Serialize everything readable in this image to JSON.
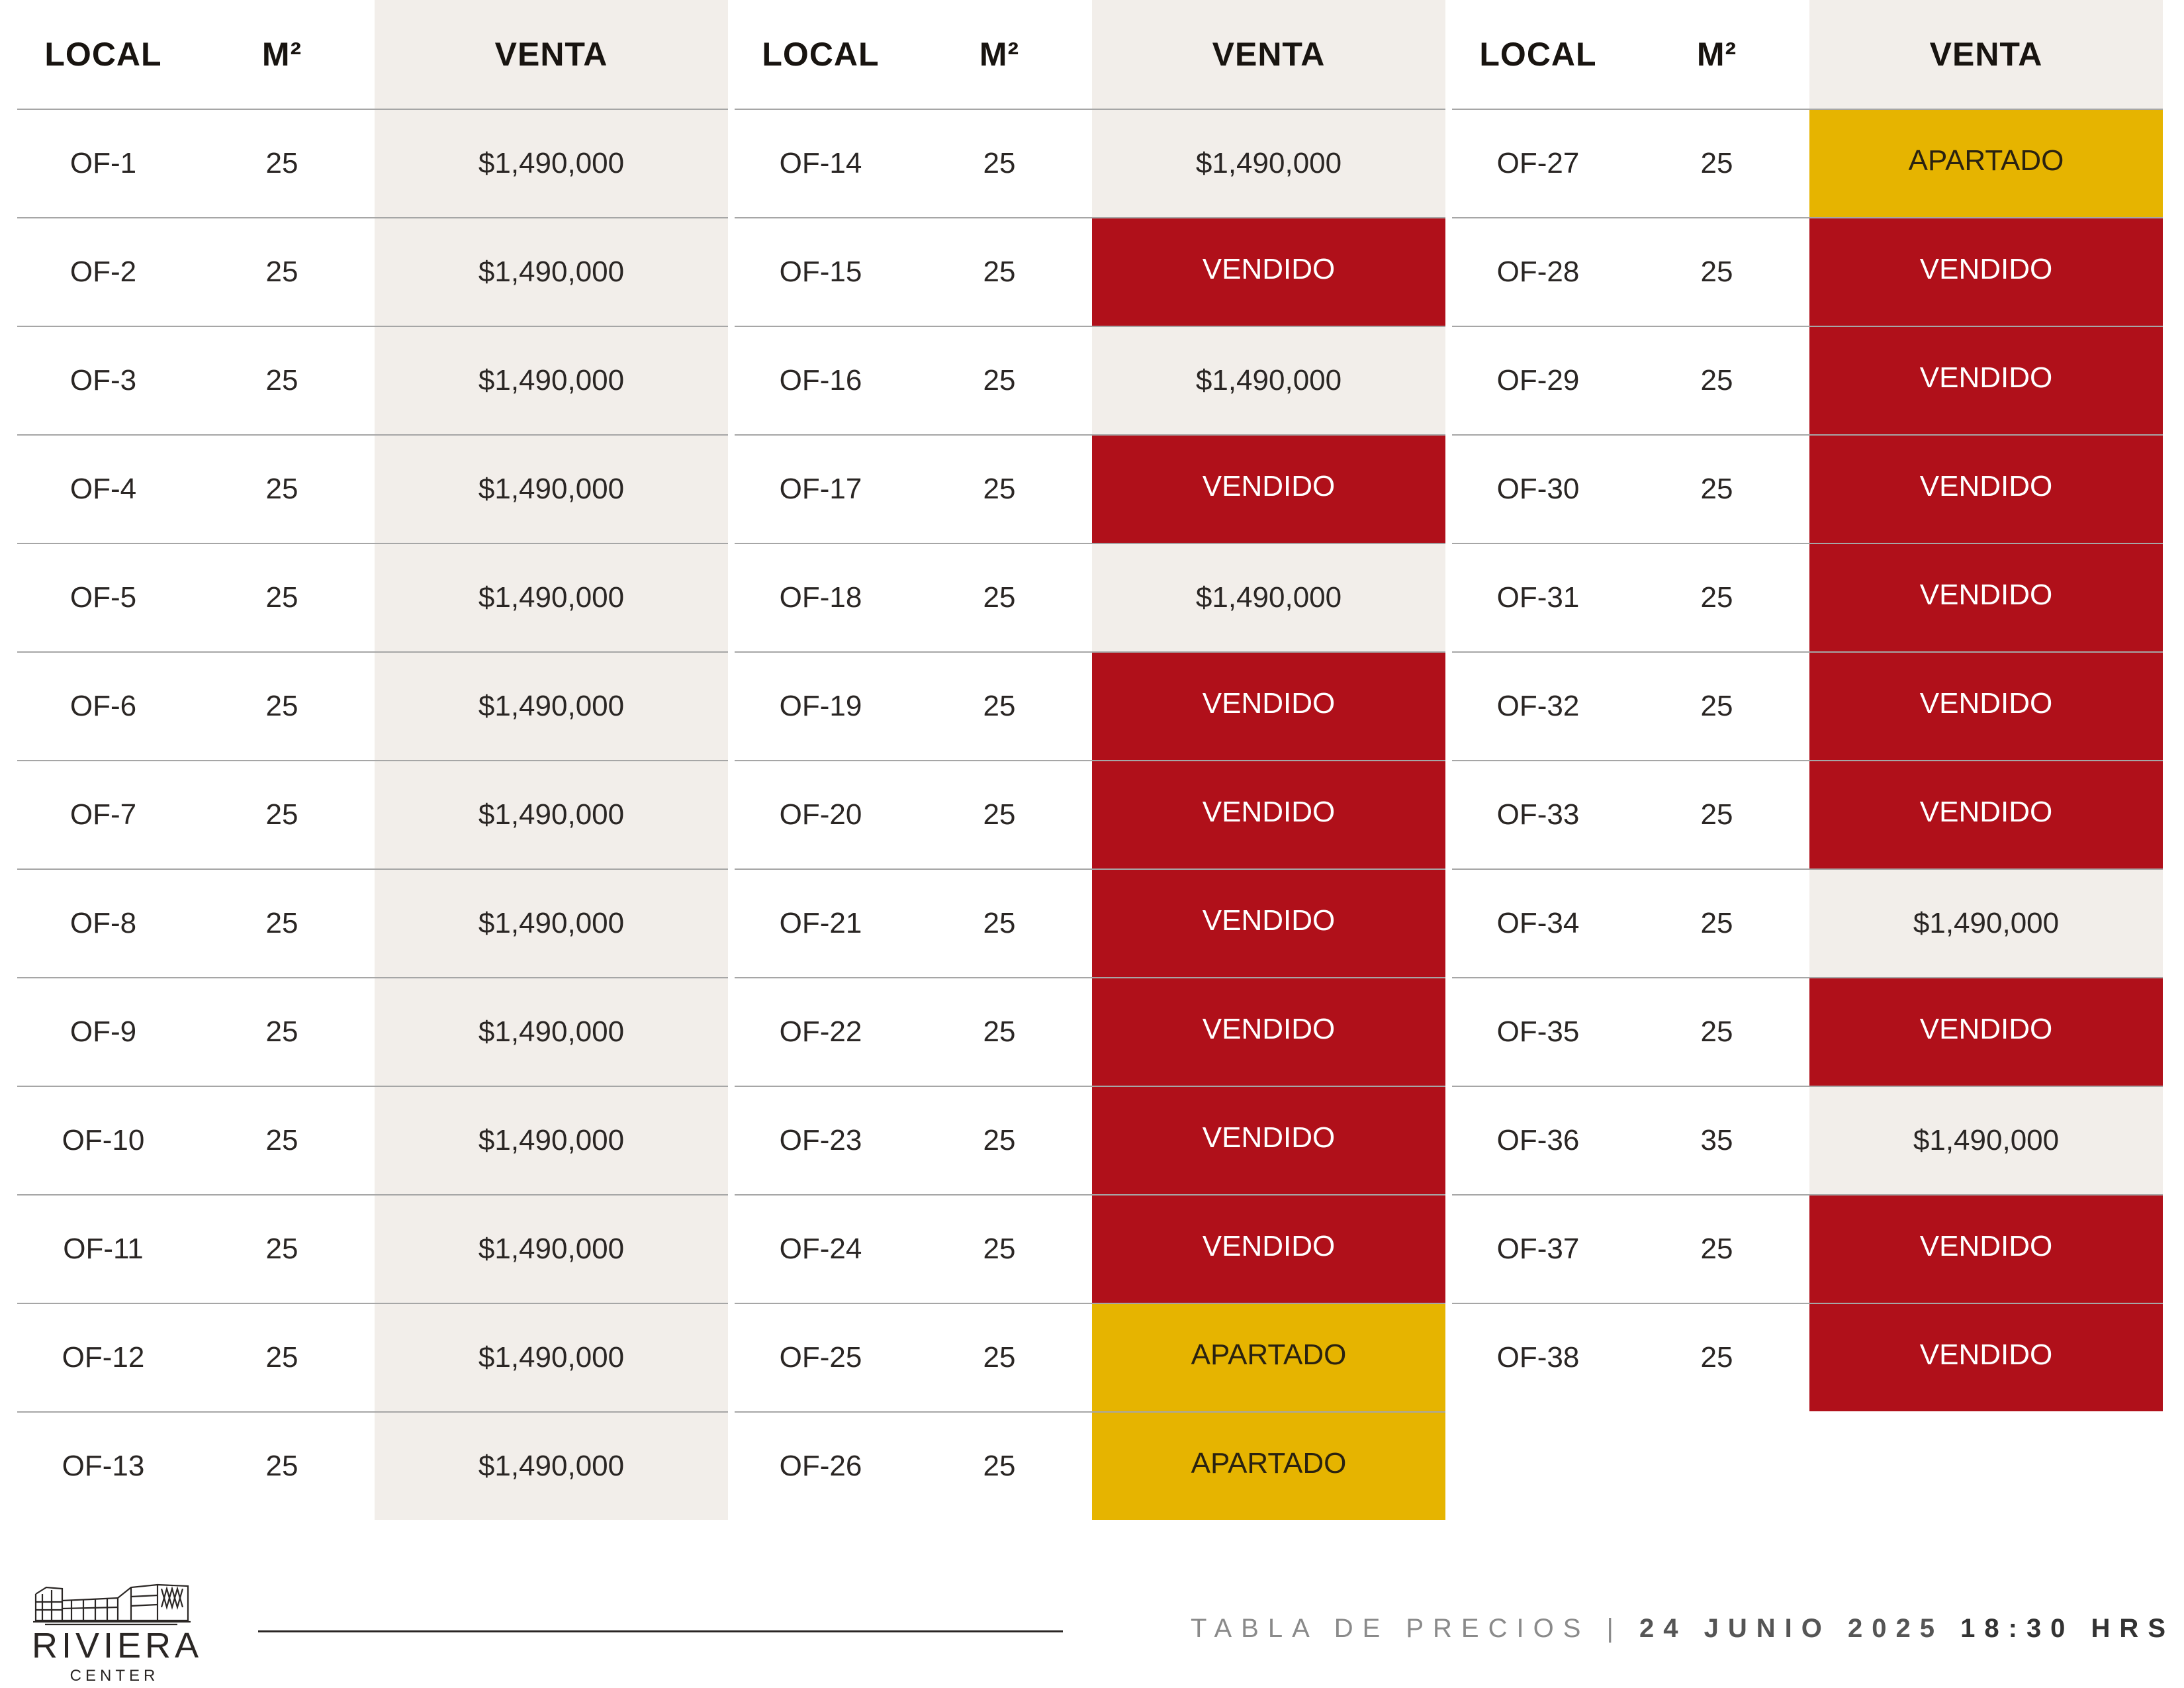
{
  "headers": {
    "local": "LOCAL",
    "m2": "M²",
    "venta": "VENTA"
  },
  "colors": {
    "sold": "#b0101a",
    "reserved": "#e6b400",
    "price_bg": "#f2eeea"
  },
  "groups": [
    {
      "rows": [
        {
          "local": "OF-1",
          "m2": "25",
          "venta": "$1,490,000",
          "status": "price"
        },
        {
          "local": "OF-2",
          "m2": "25",
          "venta": "$1,490,000",
          "status": "price"
        },
        {
          "local": "OF-3",
          "m2": "25",
          "venta": "$1,490,000",
          "status": "price"
        },
        {
          "local": "OF-4",
          "m2": "25",
          "venta": "$1,490,000",
          "status": "price"
        },
        {
          "local": "OF-5",
          "m2": "25",
          "venta": "$1,490,000",
          "status": "price"
        },
        {
          "local": "OF-6",
          "m2": "25",
          "venta": "$1,490,000",
          "status": "price"
        },
        {
          "local": "OF-7",
          "m2": "25",
          "venta": "$1,490,000",
          "status": "price"
        },
        {
          "local": "OF-8",
          "m2": "25",
          "venta": "$1,490,000",
          "status": "price"
        },
        {
          "local": "OF-9",
          "m2": "25",
          "venta": "$1,490,000",
          "status": "price"
        },
        {
          "local": "OF-10",
          "m2": "25",
          "venta": "$1,490,000",
          "status": "price"
        },
        {
          "local": "OF-11",
          "m2": "25",
          "venta": "$1,490,000",
          "status": "price"
        },
        {
          "local": "OF-12",
          "m2": "25",
          "venta": "$1,490,000",
          "status": "price"
        },
        {
          "local": "OF-13",
          "m2": "25",
          "venta": "$1,490,000",
          "status": "price"
        }
      ]
    },
    {
      "rows": [
        {
          "local": "OF-14",
          "m2": "25",
          "venta": "$1,490,000",
          "status": "price"
        },
        {
          "local": "OF-15",
          "m2": "25",
          "venta": "VENDIDO",
          "status": "sold"
        },
        {
          "local": "OF-16",
          "m2": "25",
          "venta": "$1,490,000",
          "status": "price"
        },
        {
          "local": "OF-17",
          "m2": "25",
          "venta": "VENDIDO",
          "status": "sold"
        },
        {
          "local": "OF-18",
          "m2": "25",
          "venta": "$1,490,000",
          "status": "price"
        },
        {
          "local": "OF-19",
          "m2": "25",
          "venta": "VENDIDO",
          "status": "sold"
        },
        {
          "local": "OF-20",
          "m2": "25",
          "venta": "VENDIDO",
          "status": "sold"
        },
        {
          "local": "OF-21",
          "m2": "25",
          "venta": "VENDIDO",
          "status": "sold"
        },
        {
          "local": "OF-22",
          "m2": "25",
          "venta": "VENDIDO",
          "status": "sold"
        },
        {
          "local": "OF-23",
          "m2": "25",
          "venta": "VENDIDO",
          "status": "sold"
        },
        {
          "local": "OF-24",
          "m2": "25",
          "venta": "VENDIDO",
          "status": "sold"
        },
        {
          "local": "OF-25",
          "m2": "25",
          "venta": "APARTADO",
          "status": "hold"
        },
        {
          "local": "OF-26",
          "m2": "25",
          "venta": "APARTADO",
          "status": "hold"
        }
      ]
    },
    {
      "rows": [
        {
          "local": "OF-27",
          "m2": "25",
          "venta": "APARTADO",
          "status": "hold"
        },
        {
          "local": "OF-28",
          "m2": "25",
          "venta": "VENDIDO",
          "status": "sold"
        },
        {
          "local": "OF-29",
          "m2": "25",
          "venta": "VENDIDO",
          "status": "sold"
        },
        {
          "local": "OF-30",
          "m2": "25",
          "venta": "VENDIDO",
          "status": "sold"
        },
        {
          "local": "OF-31",
          "m2": "25",
          "venta": "VENDIDO",
          "status": "sold"
        },
        {
          "local": "OF-32",
          "m2": "25",
          "venta": "VENDIDO",
          "status": "sold"
        },
        {
          "local": "OF-33",
          "m2": "25",
          "venta": "VENDIDO",
          "status": "sold"
        },
        {
          "local": "OF-34",
          "m2": "25",
          "venta": "$1,490,000",
          "status": "price"
        },
        {
          "local": "OF-35",
          "m2": "25",
          "venta": "VENDIDO",
          "status": "sold"
        },
        {
          "local": "OF-36",
          "m2": "35",
          "venta": "$1,490,000",
          "status": "price"
        },
        {
          "local": "OF-37",
          "m2": "25",
          "venta": "VENDIDO",
          "status": "sold"
        },
        {
          "local": "OF-38",
          "m2": "25",
          "venta": "VENDIDO",
          "status": "sold"
        }
      ]
    }
  ],
  "logo": {
    "name": "RIVIERA",
    "subtitle": "CENTER",
    "icon": "building-icon"
  },
  "footer": {
    "label": "TABLA DE PRECIOS",
    "separator": "|",
    "date": "24 JUNIO 2025",
    "time": "18:30 HRS"
  }
}
